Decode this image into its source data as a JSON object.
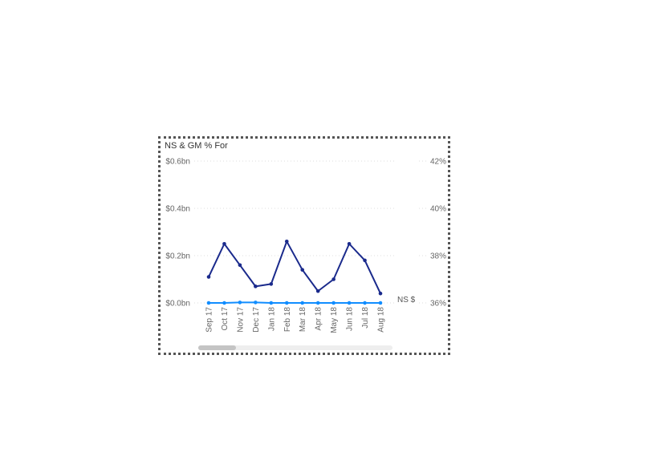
{
  "chart_data": {
    "type": "line",
    "title": "NS & GM % For",
    "categories": [
      "Sep 17",
      "Oct 17",
      "Nov 17",
      "Dec 17",
      "Jan 18",
      "Feb 18",
      "Mar 18",
      "Apr 18",
      "May 18",
      "Jun 18",
      "Jul 18",
      "Aug 18"
    ],
    "y_left": {
      "ticks": [
        "$0.0bn",
        "$0.2bn",
        "$0.4bn",
        "$0.6bn"
      ],
      "tick_values": [
        0,
        0.2,
        0.4,
        0.6
      ],
      "ylim": [
        0,
        0.6
      ],
      "units": "$bn"
    },
    "y_right": {
      "ticks": [
        "36%",
        "38%",
        "40%",
        "42%"
      ],
      "tick_values": [
        36,
        38,
        40,
        42
      ],
      "ylim": [
        36,
        42
      ],
      "units": "%"
    },
    "series": [
      {
        "axis": "right",
        "color": "#1a2a8c",
        "values": [
          37.1,
          38.5,
          37.6,
          36.7,
          36.8,
          38.6,
          37.4,
          36.5,
          37.0,
          38.5,
          37.8,
          36.4
        ]
      },
      {
        "name": "NS $",
        "axis": "left",
        "color": "#118dff",
        "values": [
          0.0,
          0.0,
          0.002,
          0.002,
          0.0,
          0.0,
          0.0,
          0.0,
          0.0,
          0.0,
          0.0,
          0.0
        ]
      }
    ],
    "grid": true,
    "legend": "none"
  }
}
